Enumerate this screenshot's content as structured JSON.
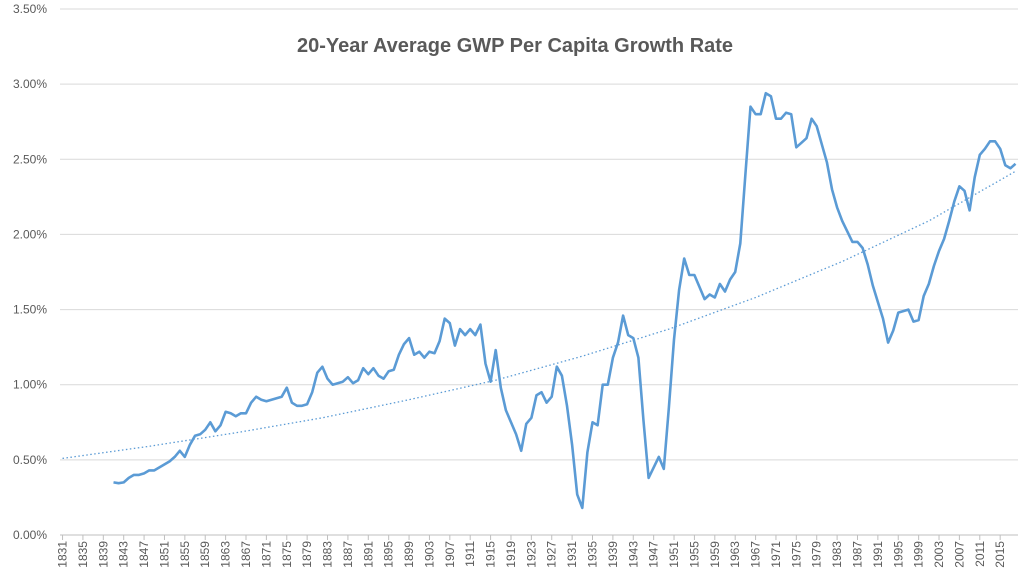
{
  "chart_data": {
    "type": "line",
    "title": "20-Year Average GWP Per Capita Growth Rate",
    "xlim": [
      1830.5,
      2018.5
    ],
    "xticks": [
      1831,
      1835,
      1839,
      1843,
      1847,
      1851,
      1855,
      1859,
      1863,
      1867,
      1871,
      1875,
      1879,
      1883,
      1887,
      1891,
      1895,
      1899,
      1903,
      1907,
      1911,
      1915,
      1919,
      1923,
      1927,
      1931,
      1935,
      1939,
      1943,
      1947,
      1951,
      1955,
      1959,
      1963,
      1967,
      1971,
      1975,
      1979,
      1983,
      1987,
      1991,
      1995,
      1999,
      2003,
      2007,
      2011,
      2015
    ],
    "ylim": [
      0,
      3.5
    ],
    "yticks": [
      {
        "value": 0,
        "label": "0.00%"
      },
      {
        "value": 0.5,
        "label": "0.50%"
      },
      {
        "value": 1,
        "label": "1.00%"
      },
      {
        "value": 1.5,
        "label": "1.50%"
      },
      {
        "value": 2,
        "label": "2.00%"
      },
      {
        "value": 2.5,
        "label": "2.50%"
      },
      {
        "value": 3,
        "label": "3.00%"
      },
      {
        "value": 3.5,
        "label": "3.50%"
      }
    ],
    "grid": true,
    "series": [
      {
        "color": "#5b9bd5",
        "style": "solid",
        "x": [
          1841,
          1842,
          1843,
          1844,
          1845,
          1846,
          1847,
          1848,
          1849,
          1850,
          1851,
          1852,
          1853,
          1854,
          1855,
          1856,
          1857,
          1858,
          1859,
          1860,
          1861,
          1862,
          1863,
          1864,
          1865,
          1866,
          1867,
          1868,
          1869,
          1870,
          1871,
          1872,
          1873,
          1874,
          1875,
          1876,
          1877,
          1878,
          1879,
          1880,
          1881,
          1882,
          1883,
          1884,
          1885,
          1886,
          1887,
          1888,
          1889,
          1890,
          1891,
          1892,
          1893,
          1894,
          1895,
          1896,
          1897,
          1898,
          1899,
          1900,
          1901,
          1902,
          1903,
          1904,
          1905,
          1906,
          1907,
          1908,
          1909,
          1910,
          1911,
          1912,
          1913,
          1914,
          1915,
          1916,
          1917,
          1918,
          1919,
          1920,
          1921,
          1922,
          1923,
          1924,
          1925,
          1926,
          1927,
          1928,
          1929,
          1930,
          1931,
          1932,
          1933,
          1934,
          1935,
          1936,
          1937,
          1938,
          1939,
          1940,
          1941,
          1942,
          1943,
          1944,
          1945,
          1946,
          1947,
          1948,
          1949,
          1950,
          1951,
          1952,
          1953,
          1954,
          1955,
          1956,
          1957,
          1958,
          1959,
          1960,
          1961,
          1962,
          1963,
          1964,
          1965,
          1966,
          1967,
          1968,
          1969,
          1970,
          1971,
          1972,
          1973,
          1974,
          1975,
          1976,
          1977,
          1978,
          1979,
          1980,
          1981,
          1982,
          1983,
          1984,
          1985,
          1986,
          1987,
          1988,
          1989,
          1990,
          1991,
          1992,
          1993,
          1994,
          1995,
          1996,
          1997,
          1998,
          1999,
          2000,
          2001,
          2002,
          2003,
          2004,
          2005,
          2006,
          2007,
          2008,
          2009,
          2010,
          2011,
          2012,
          2013,
          2014,
          2015,
          2016,
          2017,
          2018
        ],
        "values": [
          0.35,
          0.345,
          0.35,
          0.38,
          0.4,
          0.4,
          0.41,
          0.43,
          0.43,
          0.45,
          0.47,
          0.49,
          0.52,
          0.56,
          0.52,
          0.6,
          0.66,
          0.67,
          0.7,
          0.75,
          0.69,
          0.73,
          0.82,
          0.81,
          0.79,
          0.81,
          0.81,
          0.88,
          0.92,
          0.9,
          0.89,
          0.9,
          0.91,
          0.92,
          0.98,
          0.88,
          0.86,
          0.86,
          0.87,
          0.95,
          1.08,
          1.12,
          1.04,
          1.0,
          1.01,
          1.02,
          1.05,
          1.01,
          1.03,
          1.11,
          1.07,
          1.11,
          1.06,
          1.04,
          1.09,
          1.1,
          1.2,
          1.27,
          1.31,
          1.2,
          1.22,
          1.18,
          1.22,
          1.21,
          1.29,
          1.44,
          1.41,
          1.26,
          1.37,
          1.33,
          1.37,
          1.33,
          1.4,
          1.14,
          1.02,
          1.23,
          0.98,
          0.83,
          0.75,
          0.67,
          0.56,
          0.74,
          0.78,
          0.93,
          0.95,
          0.88,
          0.92,
          1.12,
          1.06,
          0.86,
          0.6,
          0.27,
          0.18,
          0.55,
          0.75,
          0.73,
          1.0,
          1.0,
          1.18,
          1.28,
          1.46,
          1.33,
          1.31,
          1.18,
          0.76,
          0.38,
          0.45,
          0.52,
          0.44,
          0.85,
          1.3,
          1.63,
          1.84,
          1.73,
          1.73,
          1.65,
          1.57,
          1.6,
          1.58,
          1.67,
          1.62,
          1.7,
          1.75,
          1.94,
          2.4,
          2.85,
          2.8,
          2.8,
          2.94,
          2.92,
          2.77,
          2.77,
          2.81,
          2.8,
          2.58,
          2.61,
          2.64,
          2.77,
          2.72,
          2.6,
          2.48,
          2.3,
          2.18,
          2.09,
          2.02,
          1.95,
          1.95,
          1.91,
          1.8,
          1.66,
          1.55,
          1.44,
          1.28,
          1.36,
          1.48,
          1.49,
          1.5,
          1.42,
          1.43,
          1.59,
          1.67,
          1.79,
          1.89,
          1.97,
          2.09,
          2.22,
          2.32,
          2.29,
          2.16,
          2.38,
          2.53,
          2.57,
          2.62,
          2.62,
          2.57,
          2.46,
          2.44,
          2.47
        ]
      },
      {
        "color": "#5b9bd5",
        "style": "dotted",
        "x": [
          1831,
          1848,
          1865,
          1882,
          1899,
          1916,
          1933,
          1950,
          1967,
          1984,
          2001,
          2018
        ],
        "values": [
          0.51,
          0.59,
          0.68,
          0.78,
          0.9,
          1.03,
          1.19,
          1.37,
          1.58,
          1.82,
          2.09,
          2.42
        ]
      }
    ]
  }
}
